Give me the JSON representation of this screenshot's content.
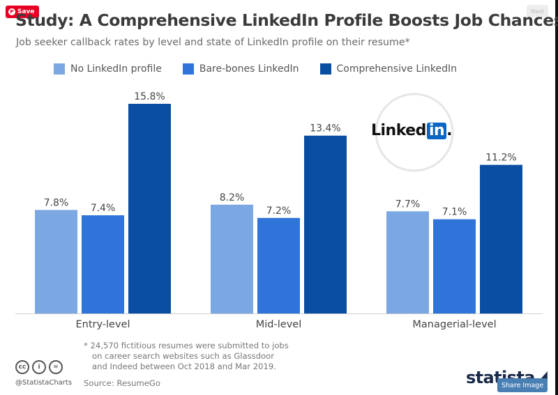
{
  "overlay": {
    "save_label": "Save",
    "save_icon": "P",
    "top_right_label": "Next",
    "share_label": "Share Image"
  },
  "header": {
    "title": "Study: A Comprehensive LinkedIn Profile Boosts Job Chances",
    "subtitle": "Job seeker callback rates by level and state of LinkedIn profile on their resume*"
  },
  "logo": {
    "text_a": "Linked",
    "text_b": "in",
    "dot": "."
  },
  "footer": {
    "note_lines": [
      "* 24,570 fictitious resumes were submitted to jobs",
      "on career search websites such as Glassdoor",
      "and Indeed between Oct 2018 and Mar 2019."
    ],
    "source": "Source: ResumeGo",
    "handle": "@StatistaCharts",
    "brand": "statista",
    "cc_icons": [
      "cc",
      "i",
      "="
    ]
  },
  "chart_data": {
    "type": "bar",
    "categories": [
      "Entry-level",
      "Mid-level",
      "Managerial-level"
    ],
    "series": [
      {
        "name": "No LinkedIn profile",
        "values": [
          7.8,
          8.2,
          7.7
        ],
        "labels": [
          "7.8%",
          "8.2%",
          "7.7%"
        ],
        "color": "#7ba7e2"
      },
      {
        "name": "Bare-bones LinkedIn",
        "values": [
          7.4,
          7.2,
          7.1
        ],
        "labels": [
          "7.4%",
          "7.2%",
          "7.1%"
        ],
        "color": "#2f74d8"
      },
      {
        "name": "Comprehensive LinkedIn",
        "values": [
          15.8,
          13.4,
          11.2
        ],
        "labels": [
          "15.8%",
          "13.4%",
          "11.2%"
        ],
        "color": "#0a4ea3"
      }
    ],
    "ylim": [
      0,
      15.8
    ],
    "grid": false,
    "legend": "top"
  }
}
